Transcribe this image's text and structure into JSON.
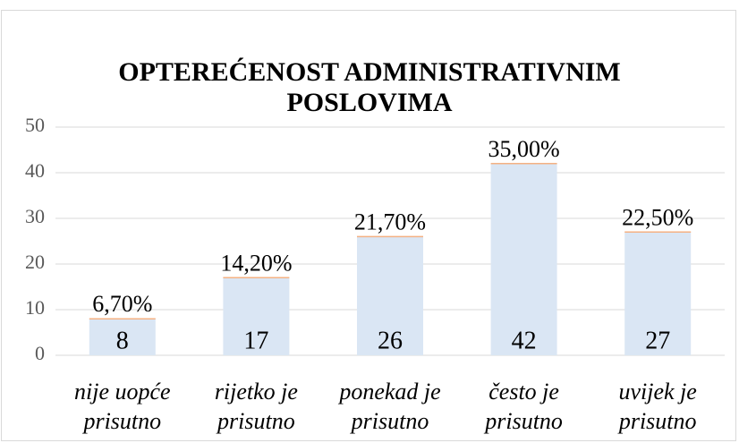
{
  "chart_data": {
    "type": "bar",
    "title": "OPTEREĆENOST ADMINISTRATIVNIM POSLOVIMA",
    "categories": [
      "nije uopće prisutno",
      "rijetko je prisutno",
      "ponekad je prisutno",
      "često je prisutno",
      "uvijek je prisutno"
    ],
    "values": [
      8,
      17,
      26,
      42,
      27
    ],
    "annotations": [
      "6,70%",
      "14,20%",
      "21,70%",
      "35,00%",
      "22,50%"
    ],
    "color": "#dae6f4",
    "ylim": [
      0,
      50
    ],
    "yticks": [
      0,
      10,
      20,
      30,
      40,
      50
    ],
    "grid": true
  }
}
